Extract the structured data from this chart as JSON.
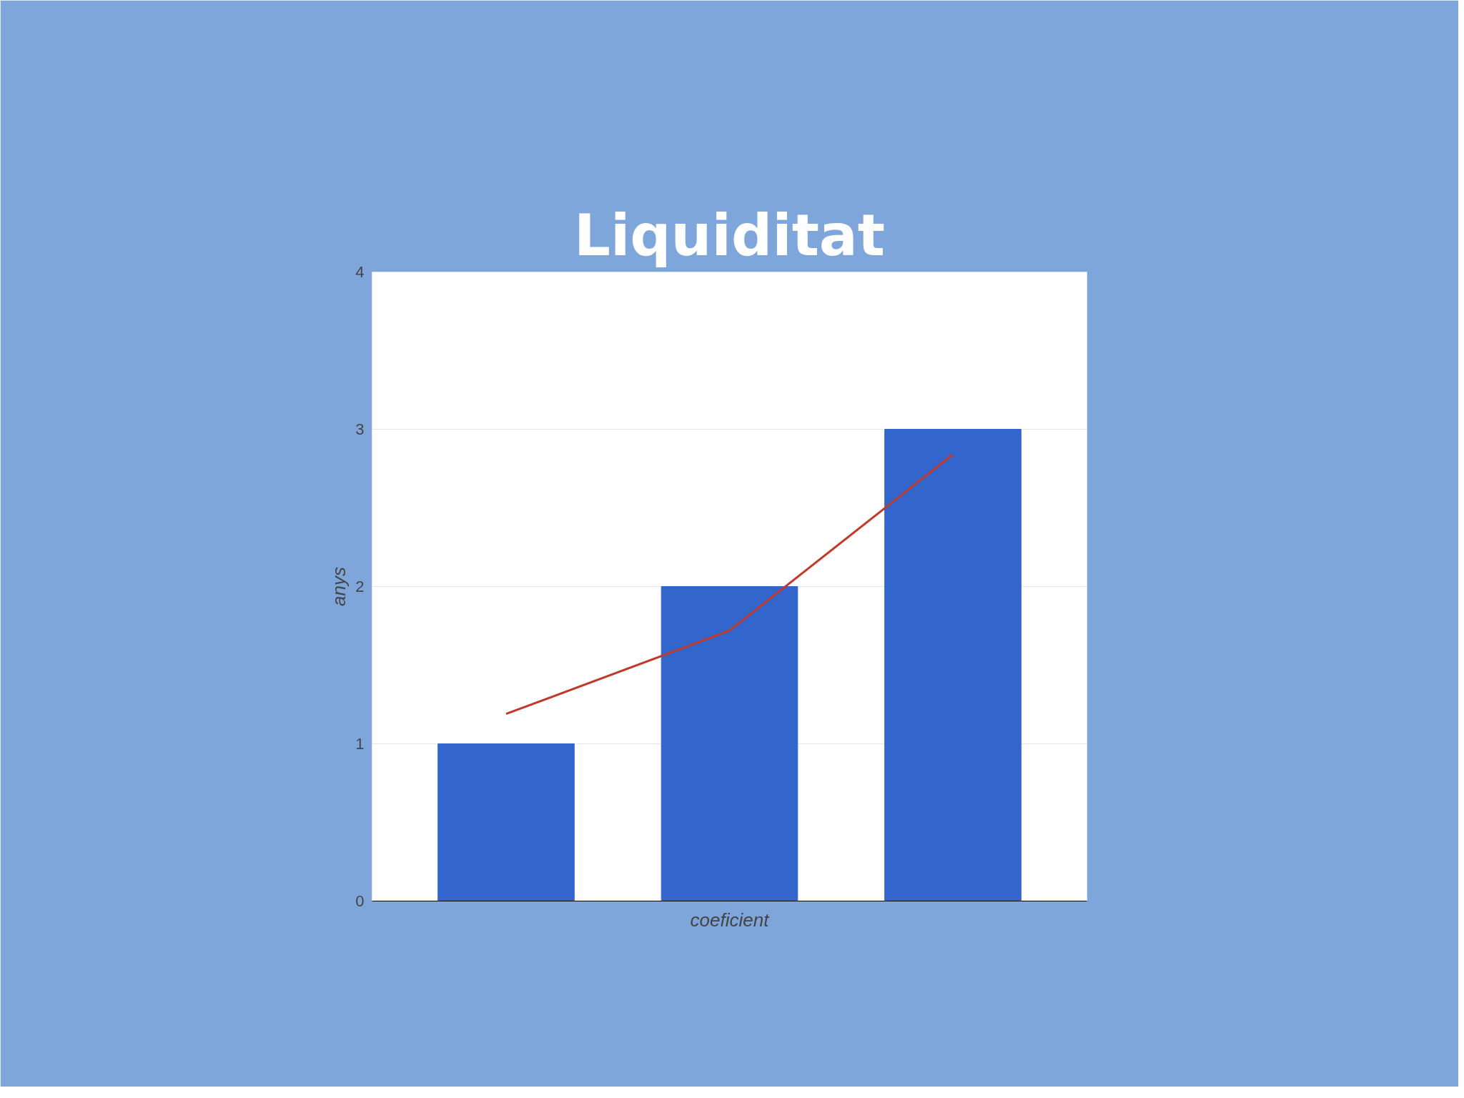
{
  "chart_data": {
    "type": "bar",
    "title": "Liquiditat",
    "xlabel": "coeficient",
    "ylabel": "anys",
    "categories": [
      null,
      null,
      null
    ],
    "series": [
      {
        "color": "#3366cc",
        "values": [
          1,
          2,
          3
        ]
      },
      {
        "type": "line",
        "color": "#c0392b",
        "values": [
          1.19,
          1.72,
          2.84
        ]
      }
    ],
    "ylim": [
      0,
      4
    ],
    "yticks": [
      0,
      1,
      2,
      3,
      4
    ],
    "grid": "y",
    "tick_labels": "y"
  }
}
